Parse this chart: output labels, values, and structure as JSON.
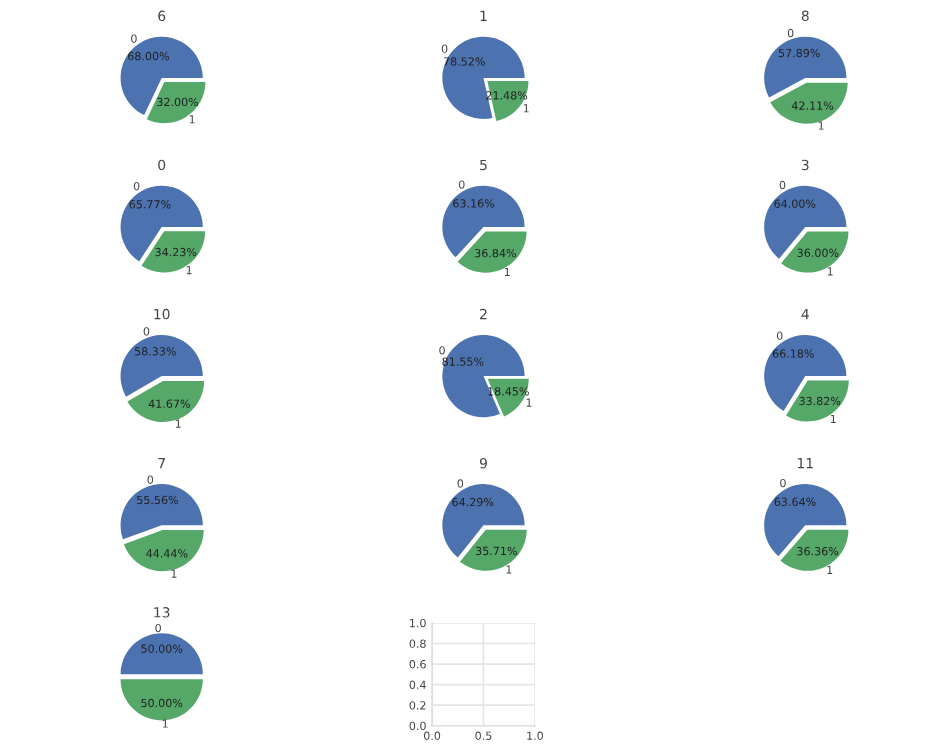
{
  "chart_data": [
    {
      "type": "pie",
      "title": "6",
      "categories": [
        "0",
        "1"
      ],
      "values": [
        68.0,
        32.0
      ],
      "value_labels": [
        "68.00%",
        "32.00%"
      ],
      "colors": [
        "#4c72b0",
        "#55a868"
      ]
    },
    {
      "type": "pie",
      "title": "1",
      "categories": [
        "0",
        "1"
      ],
      "values": [
        78.52,
        21.48
      ],
      "value_labels": [
        "78.52%",
        "21.48%"
      ],
      "colors": [
        "#4c72b0",
        "#55a868"
      ]
    },
    {
      "type": "pie",
      "title": "8",
      "categories": [
        "0",
        "1"
      ],
      "values": [
        57.89,
        42.11
      ],
      "value_labels": [
        "57.89%",
        "42.11%"
      ],
      "colors": [
        "#4c72b0",
        "#55a868"
      ]
    },
    {
      "type": "pie",
      "title": "0",
      "categories": [
        "0",
        "1"
      ],
      "values": [
        65.77,
        34.23
      ],
      "value_labels": [
        "65.77%",
        "34.23%"
      ],
      "colors": [
        "#4c72b0",
        "#55a868"
      ]
    },
    {
      "type": "pie",
      "title": "5",
      "categories": [
        "0",
        "1"
      ],
      "values": [
        63.16,
        36.84
      ],
      "value_labels": [
        "63.16%",
        "36.84%"
      ],
      "colors": [
        "#4c72b0",
        "#55a868"
      ]
    },
    {
      "type": "pie",
      "title": "3",
      "categories": [
        "0",
        "1"
      ],
      "values": [
        64.0,
        36.0
      ],
      "value_labels": [
        "64.00%",
        "36.00%"
      ],
      "colors": [
        "#4c72b0",
        "#55a868"
      ]
    },
    {
      "type": "pie",
      "title": "10",
      "categories": [
        "0",
        "1"
      ],
      "values": [
        58.33,
        41.67
      ],
      "value_labels": [
        "58.33%",
        "41.67%"
      ],
      "colors": [
        "#4c72b0",
        "#55a868"
      ]
    },
    {
      "type": "pie",
      "title": "2",
      "categories": [
        "0",
        "1"
      ],
      "values": [
        81.55,
        18.45
      ],
      "value_labels": [
        "81.55%",
        "18.45%"
      ],
      "colors": [
        "#4c72b0",
        "#55a868"
      ]
    },
    {
      "type": "pie",
      "title": "4",
      "categories": [
        "0",
        "1"
      ],
      "values": [
        66.18,
        33.82
      ],
      "value_labels": [
        "66.18%",
        "33.82%"
      ],
      "colors": [
        "#4c72b0",
        "#55a868"
      ]
    },
    {
      "type": "pie",
      "title": "7",
      "categories": [
        "0",
        "1"
      ],
      "values": [
        55.56,
        44.44
      ],
      "value_labels": [
        "55.56%",
        "44.44%"
      ],
      "colors": [
        "#4c72b0",
        "#55a868"
      ]
    },
    {
      "type": "pie",
      "title": "9",
      "categories": [
        "0",
        "1"
      ],
      "values": [
        64.29,
        35.71
      ],
      "value_labels": [
        "64.29%",
        "35.71%"
      ],
      "colors": [
        "#4c72b0",
        "#55a868"
      ]
    },
    {
      "type": "pie",
      "title": "11",
      "categories": [
        "0",
        "1"
      ],
      "values": [
        63.64,
        36.36
      ],
      "value_labels": [
        "63.64%",
        "36.36%"
      ],
      "colors": [
        "#4c72b0",
        "#55a868"
      ]
    },
    {
      "type": "pie",
      "title": "13",
      "categories": [
        "0",
        "1"
      ],
      "values": [
        50.0,
        50.0
      ],
      "value_labels": [
        "50.00%",
        "50.00%"
      ],
      "colors": [
        "#4c72b0",
        "#55a868"
      ]
    },
    {
      "type": "scatter",
      "xlim": [
        0,
        1
      ],
      "ylim": [
        0,
        1
      ],
      "xticks": [
        {
          "value": 0,
          "label": "0.0"
        },
        {
          "value": 0.5,
          "label": "0.5"
        },
        {
          "value": 1,
          "label": "1.0"
        }
      ],
      "yticks": [
        {
          "value": 0,
          "label": "0.0"
        },
        {
          "value": 0.2,
          "label": "0.2"
        },
        {
          "value": 0.4,
          "label": "0.4"
        },
        {
          "value": 0.6,
          "label": "0.6"
        },
        {
          "value": 0.8,
          "label": "0.8"
        },
        {
          "value": 1,
          "label": "1.0"
        }
      ],
      "grid": true
    }
  ]
}
